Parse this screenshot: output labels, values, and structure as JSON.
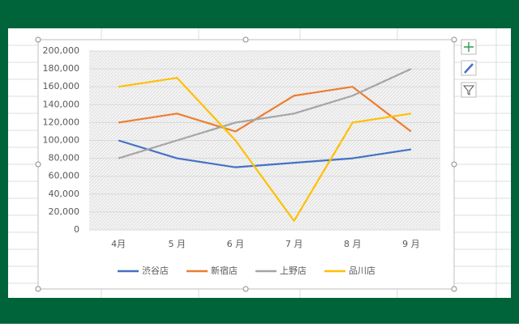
{
  "chart_data": {
    "type": "line",
    "categories": [
      "4月",
      "5 月",
      "6 月",
      "7 月",
      "8 月",
      "9 月"
    ],
    "series": [
      {
        "name": "渋谷店",
        "color": "#4472c4",
        "values": [
          100000,
          80000,
          70000,
          75000,
          80000,
          90000
        ]
      },
      {
        "name": "新宿店",
        "color": "#ed7d31",
        "values": [
          120000,
          130000,
          110000,
          150000,
          160000,
          110000
        ]
      },
      {
        "name": "上野店",
        "color": "#a5a5a5",
        "values": [
          80000,
          100000,
          120000,
          130000,
          150000,
          180000
        ]
      },
      {
        "name": "品川店",
        "color": "#ffc000",
        "values": [
          160000,
          170000,
          100000,
          10000,
          120000,
          130000
        ]
      }
    ],
    "ylim": [
      0,
      200000
    ],
    "yticks": [
      0,
      {
        "value": 20000,
        "label": "20,000"
      },
      {
        "value": 40000,
        "label": "40,000"
      },
      {
        "value": 60000,
        "label": "60,000"
      },
      {
        "value": 80000,
        "label": "80,000"
      },
      {
        "value": 100000,
        "label": "100,000"
      },
      {
        "value": 120000,
        "label": "120,000"
      },
      {
        "value": 140000,
        "label": "140,000"
      },
      {
        "value": 160000,
        "label": "160,000"
      },
      {
        "value": 180000,
        "label": "180,000"
      },
      {
        "value": 200000,
        "label": "200,000"
      }
    ],
    "grid": true,
    "legend": "bottom"
  }
}
